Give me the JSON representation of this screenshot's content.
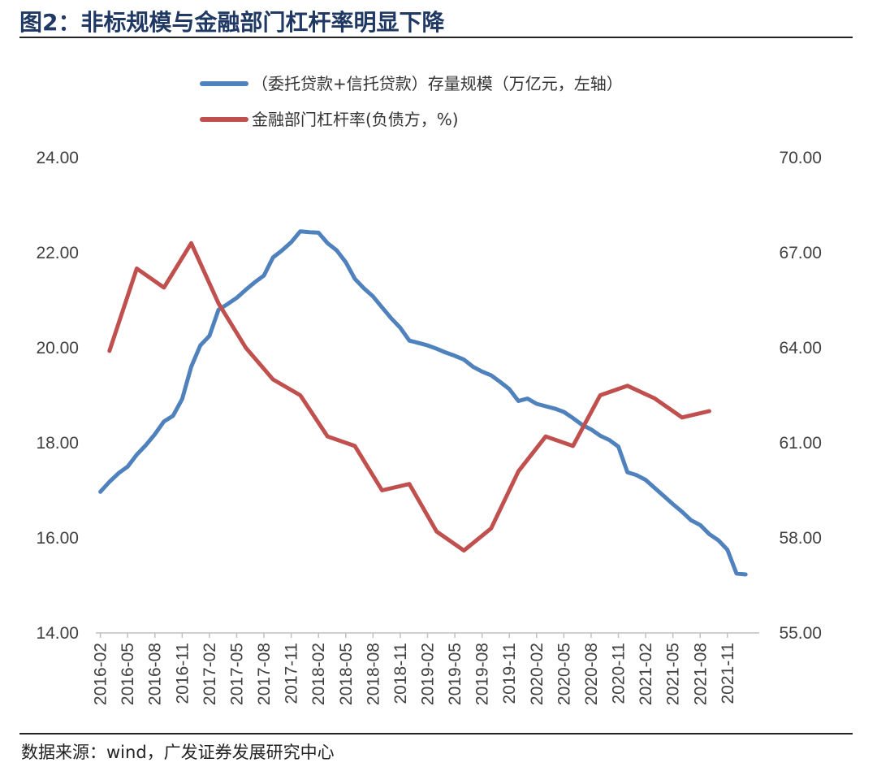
{
  "header": {
    "title": "图2：非标规模与金融部门杠杆率明显下降"
  },
  "footer": {
    "source": "数据来源：wind，广发证券发展研究中心"
  },
  "colors": {
    "left_series": "#4f81bd",
    "right_series": "#c0504d",
    "axis": "#bfbfbf",
    "title": "#1f3864"
  },
  "chart_data": {
    "type": "line",
    "title": "",
    "x_tick_labels": [
      "2016-02",
      "2016-05",
      "2016-08",
      "2016-11",
      "2017-02",
      "2017-05",
      "2017-08",
      "2017-11",
      "2018-02",
      "2018-05",
      "2018-08",
      "2018-11",
      "2019-02",
      "2019-05",
      "2019-08",
      "2019-11",
      "2020-02",
      "2020-05",
      "2020-08",
      "2020-11",
      "2021-02",
      "2021-05",
      "2021-08",
      "2021-11"
    ],
    "y_left": {
      "min": 14,
      "max": 24,
      "ticks": [
        "14.00",
        "16.00",
        "18.00",
        "20.00",
        "22.00",
        "24.00"
      ]
    },
    "y_right": {
      "min": 55,
      "max": 70,
      "ticks": [
        "55.00",
        "58.00",
        "61.00",
        "64.00",
        "67.00",
        "70.00"
      ]
    },
    "legend_position": "top-center",
    "series": [
      {
        "name": "（委托贷款+信托贷款）存量规模（万亿元，左轴）",
        "axis": "left",
        "frequency": "monthly",
        "start": "2016-02",
        "values": [
          16.97,
          17.18,
          17.36,
          17.5,
          17.75,
          17.95,
          18.18,
          18.45,
          18.57,
          18.92,
          19.6,
          20.05,
          20.25,
          20.8,
          20.92,
          21.05,
          21.22,
          21.38,
          21.52,
          21.9,
          22.05,
          22.22,
          22.45,
          22.43,
          22.42,
          22.2,
          22.05,
          21.8,
          21.45,
          21.25,
          21.08,
          20.85,
          20.62,
          20.42,
          20.15,
          20.1,
          20.05,
          19.98,
          19.9,
          19.83,
          19.75,
          19.6,
          19.5,
          19.42,
          19.28,
          19.13,
          18.88,
          18.93,
          18.82,
          18.77,
          18.72,
          18.65,
          18.52,
          18.38,
          18.28,
          18.15,
          18.06,
          17.92,
          17.38,
          17.32,
          17.22,
          17.05,
          16.88,
          16.71,
          16.55,
          16.37,
          16.27,
          16.08,
          15.95,
          15.75,
          15.25,
          15.23
        ]
      },
      {
        "name": "金融部门杠杆率(负债方，%)",
        "axis": "right",
        "frequency": "quarterly",
        "start": "2016-03",
        "values": [
          63.9,
          66.5,
          65.9,
          67.3,
          65.4,
          64.0,
          63.0,
          62.5,
          61.2,
          60.9,
          59.5,
          59.7,
          58.2,
          57.6,
          58.3,
          60.1,
          61.2,
          60.9,
          62.5,
          62.8,
          62.4,
          61.8,
          62.0
        ]
      }
    ]
  }
}
